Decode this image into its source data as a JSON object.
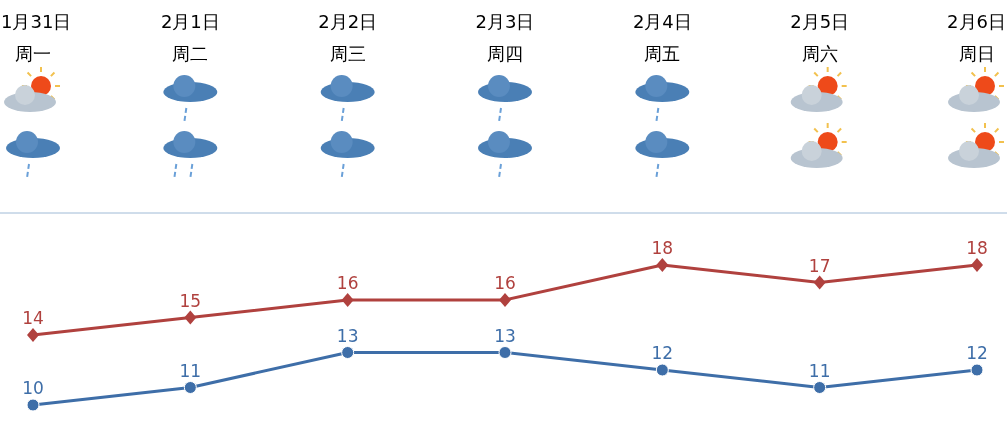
{
  "chart_data": {
    "type": "line",
    "categories": [
      "1月31日",
      "2月1日",
      "2月2日",
      "2月3日",
      "2月4日",
      "2月5日",
      "2月6日"
    ],
    "annotations": [
      "周一",
      "周二",
      "周三",
      "周四",
      "周五",
      "周六",
      "周日"
    ],
    "series": [
      {
        "color": "#b0413e",
        "marker": "diamond",
        "values": [
          14,
          15,
          16,
          16,
          18,
          17,
          18
        ]
      },
      {
        "color": "#3e6ea8",
        "marker": "circle",
        "values": [
          10,
          11,
          13,
          13,
          12,
          11,
          12
        ]
      }
    ],
    "data_labels": true,
    "line_style": "solid"
  }
}
